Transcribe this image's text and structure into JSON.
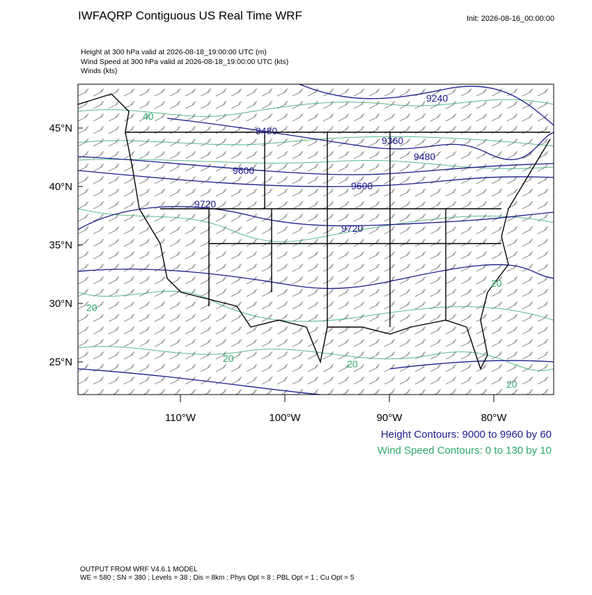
{
  "header": {
    "title": "IWFAQRP Contiguous US Real Time WRF",
    "init": "Init: 2026-08-16_00:00:00",
    "lines": [
      "Height at 300 hPa valid at 2026-08-18_19:00:00 UTC   (m)",
      "Wind Speed at 300 hPa valid at 2026-08-18_19:00:00 UTC   (kts)",
      "Winds   (kts)"
    ]
  },
  "axes": {
    "lat_labels": [
      "45°N",
      "40°N",
      "35°N",
      "30°N",
      "25°N"
    ],
    "lon_labels": [
      "110°W",
      "100°W",
      "90°W",
      "80°W"
    ]
  },
  "contour_labels": {
    "height": [
      "9240",
      "9480",
      "9360",
      "9480",
      "9600",
      "9600",
      "9720",
      "9720"
    ],
    "wind": [
      "40",
      "20",
      "20",
      "20",
      "20",
      "20"
    ]
  },
  "legend": {
    "height": "Height Contours: 9000 to 9960 by 60",
    "wind": "Wind Speed Contours: 0 to 130 by 10"
  },
  "footer": [
    "OUTPUT FROM WRF V4.6.1 MODEL",
    "WE = 580 ; SN = 380 ; Levels = 38 ; Dis = 8km ; Phys Opt = 8 ; PBL Opt = 1 ; Cu Opt = 5"
  ]
}
